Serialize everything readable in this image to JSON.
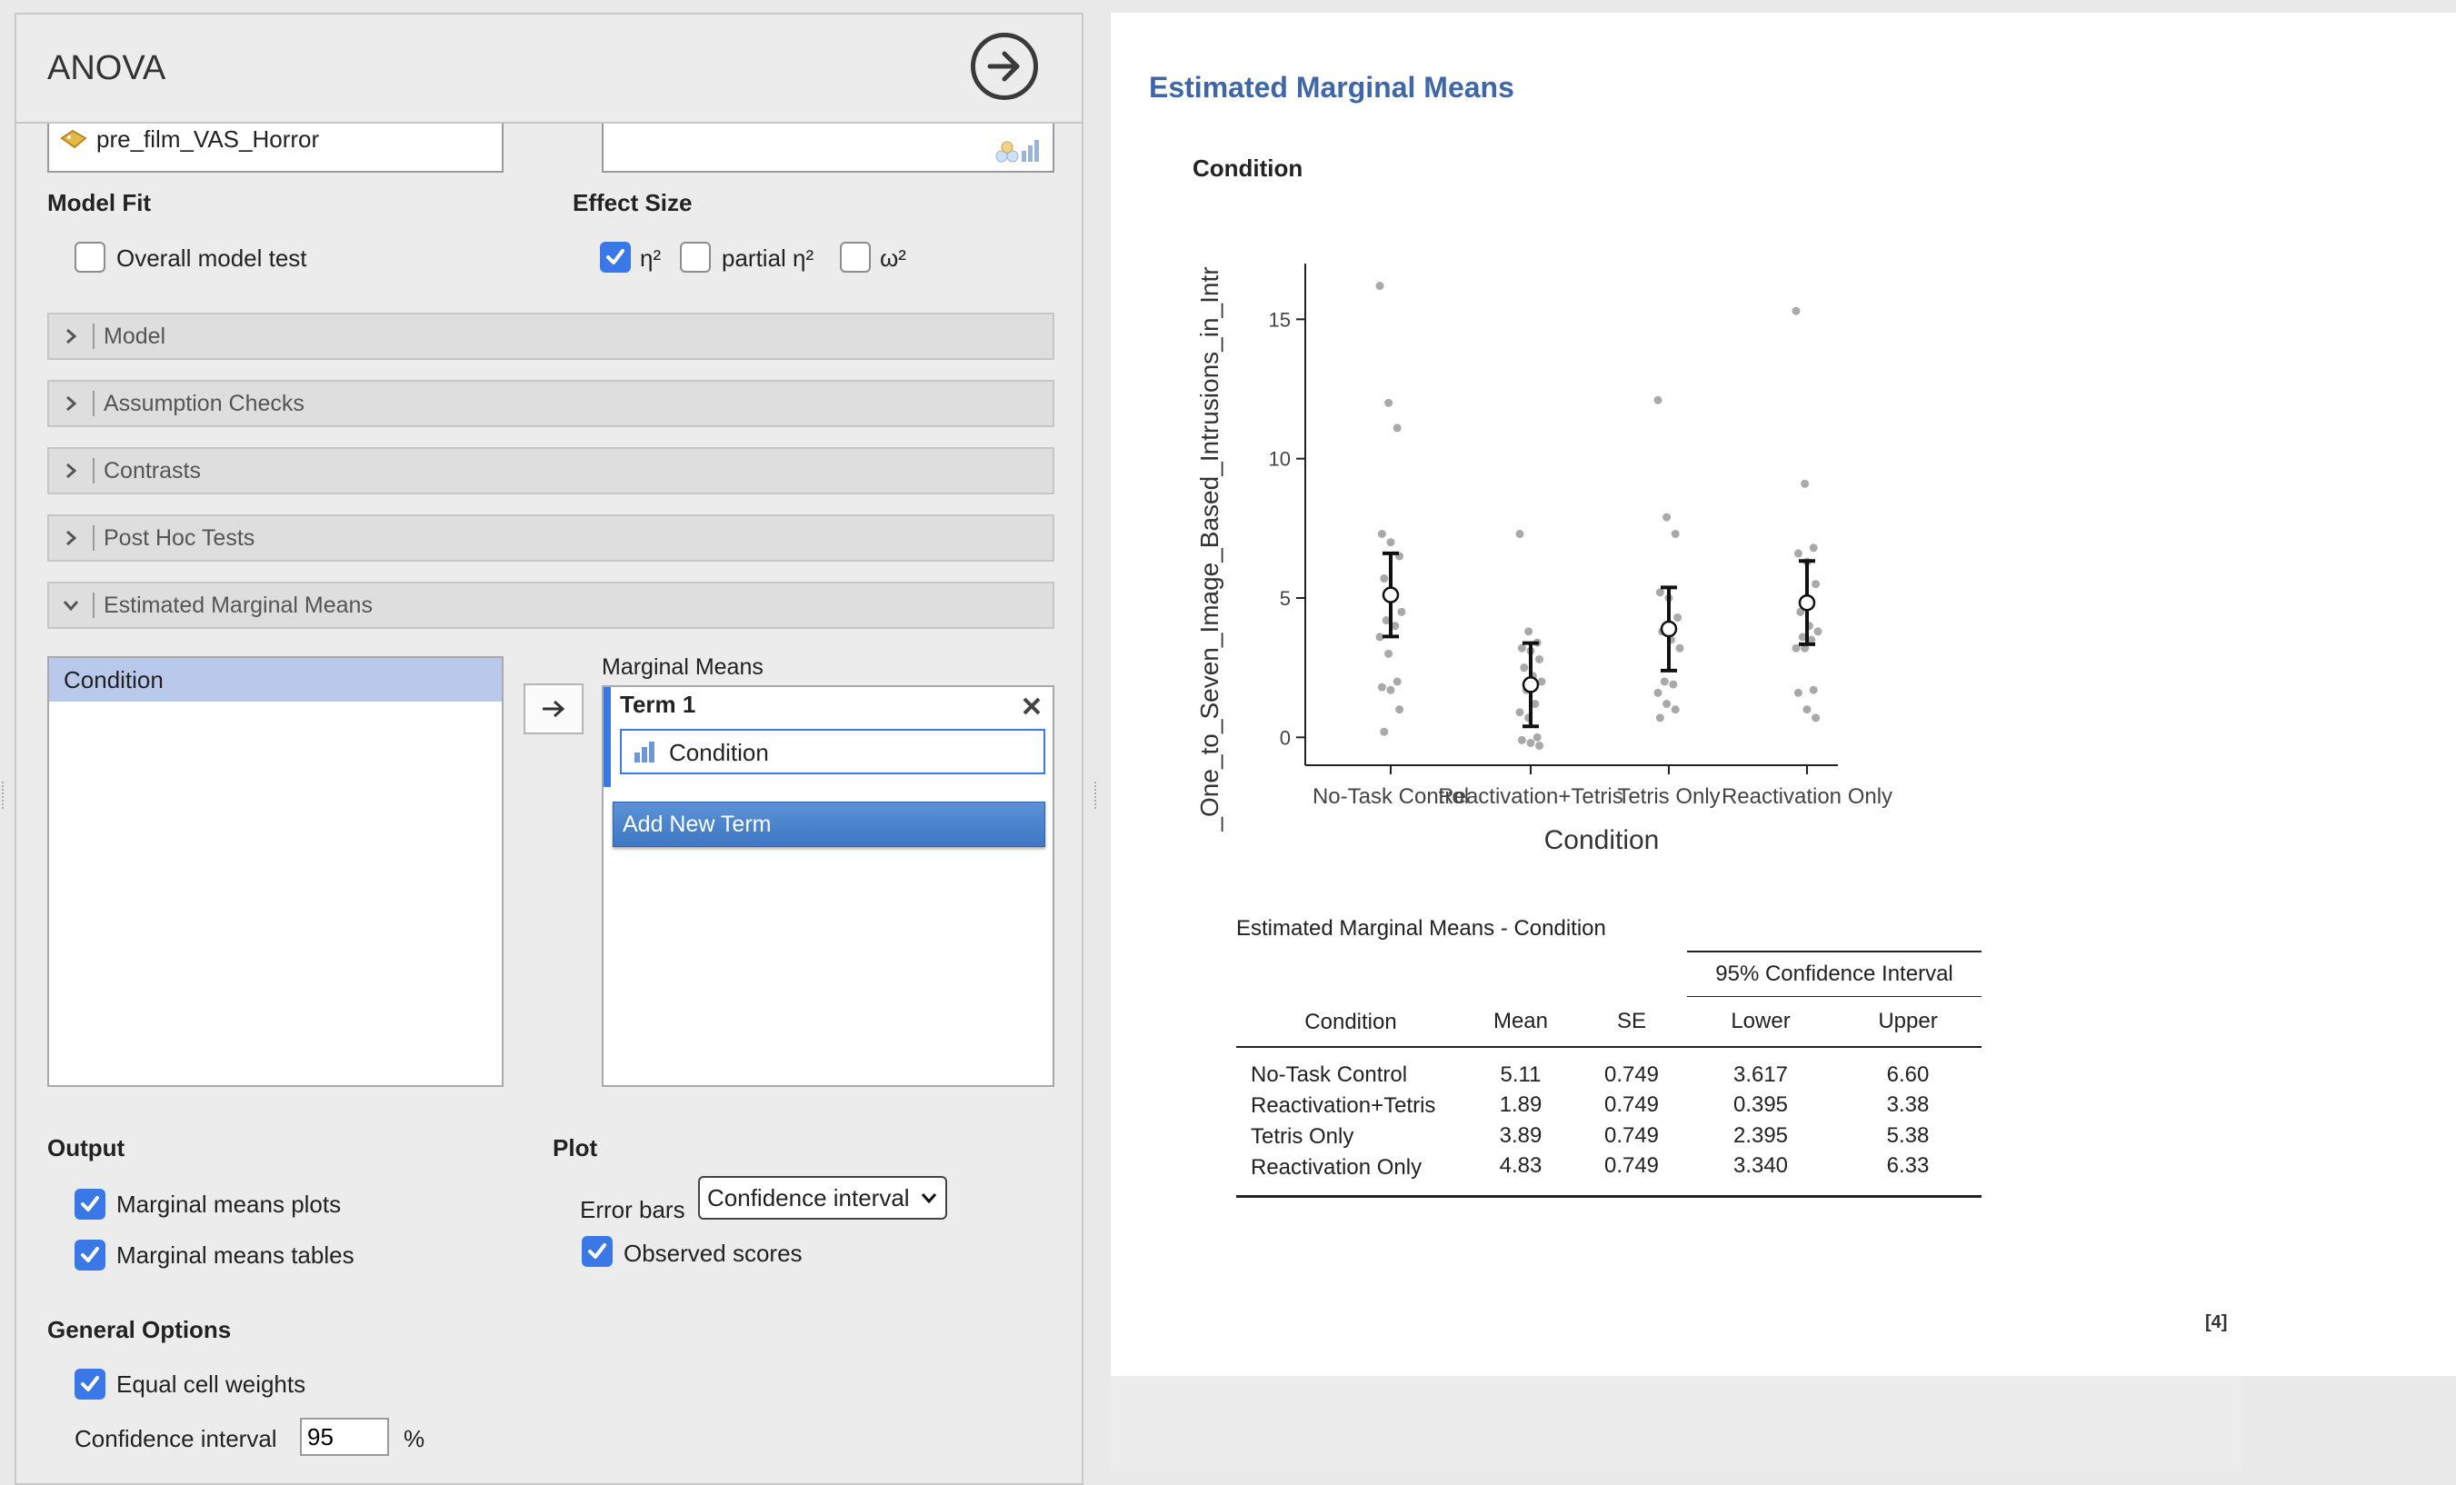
{
  "app": {
    "title": "ANOVA"
  },
  "variables": {
    "top_item": "pre_film_VAS_Horror"
  },
  "model_fit": {
    "heading": "Model Fit",
    "overall_label": "Overall model test",
    "overall_checked": false
  },
  "effect_size": {
    "heading": "Effect Size",
    "eta": "η²",
    "partial_eta": "partial η²",
    "omega": "ω²",
    "eta_checked": true,
    "partial_checked": false,
    "omega_checked": false
  },
  "sections": [
    {
      "label": "Model",
      "expanded": false
    },
    {
      "label": "Assumption Checks",
      "expanded": false
    },
    {
      "label": "Contrasts",
      "expanded": false
    },
    {
      "label": "Post Hoc Tests",
      "expanded": false
    },
    {
      "label": "Estimated Marginal Means",
      "expanded": true
    }
  ],
  "emm": {
    "available": [
      "Condition"
    ],
    "marginal_label": "Marginal Means",
    "term_title": "Term 1",
    "term_item": "Condition",
    "add_term": "Add New Term"
  },
  "output": {
    "heading": "Output",
    "plots_label": "Marginal means plots",
    "tables_label": "Marginal means tables"
  },
  "plot_opts": {
    "heading": "Plot",
    "error_bars_label": "Error bars",
    "error_bars_value": "Confidence interval",
    "observed_label": "Observed scores"
  },
  "general": {
    "heading": "General Options",
    "equal_label": "Equal cell weights",
    "ci_label": "Confidence interval",
    "ci_value": "95",
    "ci_unit": "%"
  },
  "results": {
    "title": "Estimated Marginal Means",
    "subtitle": "Condition",
    "page_ref": "[4]"
  },
  "table": {
    "title": "Estimated Marginal Means - Condition",
    "ci_header": "95% Confidence Interval",
    "columns": [
      "Condition",
      "Mean",
      "SE",
      "Lower",
      "Upper"
    ],
    "rows": [
      [
        "No-Task Control",
        "5.11",
        "0.749",
        "3.617",
        "6.60"
      ],
      [
        "Reactivation+Tetris",
        "1.89",
        "0.749",
        "0.395",
        "3.38"
      ],
      [
        "Tetris Only",
        "3.89",
        "0.749",
        "2.395",
        "5.38"
      ],
      [
        "Reactivation Only",
        "4.83",
        "0.749",
        "3.340",
        "6.33"
      ]
    ]
  },
  "colors": {
    "accent": "#3b78e7",
    "title_blue": "#3f67a8",
    "section_bg": "#dedede",
    "selected_row": "#b9c9ec"
  },
  "chart_data": {
    "type": "scatter",
    "xlabel": "Condition",
    "ylabel": "_One_to_Seven_Image_Based_Intrusions_in_Intr",
    "categories": [
      "No-Task Control",
      "Reactivation+Tetris",
      "Tetris Only",
      "Reactivation Only"
    ],
    "ylim": [
      -1,
      17
    ],
    "yticks": [
      0,
      5,
      10,
      15
    ],
    "means": [
      5.11,
      1.89,
      3.89,
      4.83
    ],
    "lower": [
      3.617,
      0.395,
      2.395,
      3.34
    ],
    "upper": [
      6.6,
      3.38,
      5.38,
      6.33
    ],
    "observed": [
      [
        16.2,
        12.0,
        11.1,
        7.3,
        7.0,
        6.5,
        5.7,
        5.2,
        4.5,
        4.2,
        4.0,
        3.6,
        3.0,
        2.0,
        1.8,
        1.7,
        1.0,
        0.2
      ],
      [
        7.3,
        3.8,
        3.4,
        3.2,
        3.1,
        2.8,
        2.5,
        2.2,
        2.0,
        1.7,
        1.2,
        0.9,
        0.7,
        0.0,
        -0.1,
        -0.2,
        -0.3
      ],
      [
        12.1,
        7.9,
        7.3,
        5.2,
        5.0,
        4.3,
        3.8,
        3.5,
        3.2,
        2.0,
        1.9,
        1.6,
        1.2,
        1.0,
        0.7
      ],
      [
        15.3,
        9.1,
        6.8,
        6.6,
        6.3,
        5.5,
        4.5,
        4.0,
        3.8,
        3.6,
        3.5,
        3.2,
        3.2,
        1.7,
        1.6,
        1.0,
        0.7
      ]
    ]
  }
}
